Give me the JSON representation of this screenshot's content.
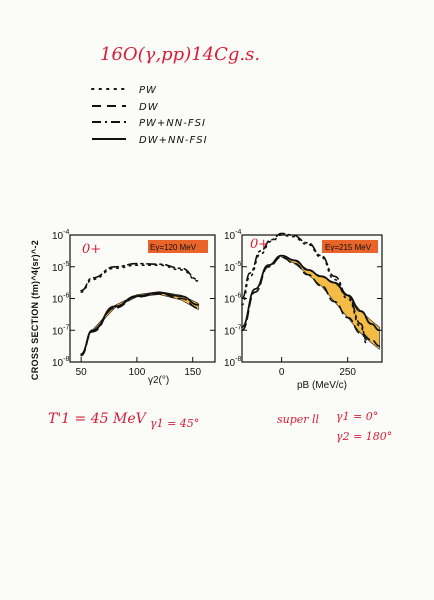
{
  "header": {
    "reaction": "16O(γ,pp)14Cg.s."
  },
  "legend": {
    "items": [
      {
        "label": "PW",
        "style": "dotted"
      },
      {
        "label": "DW",
        "style": "dashed"
      },
      {
        "label": "PW+NN-FSI",
        "style": "dashdot"
      },
      {
        "label": "DW+NN-FSI",
        "style": "solid"
      }
    ]
  },
  "notes": {
    "left": [
      "T'1 = 45 MeV",
      "γ1 = 45°"
    ],
    "right": [
      "super ll",
      "γ1 = 0°",
      "γ2 = 180°"
    ]
  },
  "colors": {
    "ink": "#111111",
    "pen": "#d4203a",
    "band": "#f0b028",
    "tag": "#e8642a"
  },
  "chart_data": [
    {
      "type": "line",
      "panel_label": "0+",
      "energy_label": "Eγ=120 MeV",
      "ylabel": "CROSS SECTION (fm)^4(sr)^-2",
      "xlabel": "γ2(°)",
      "xlim": [
        40,
        170
      ],
      "ylim_log10": [
        -8,
        -4
      ],
      "x_ticks": [
        "50",
        "100",
        "150"
      ],
      "y_ticks": [
        "10^-8",
        "10^-7",
        "10^-6",
        "10^-5",
        "10^-4"
      ],
      "y_minor_ticks": [
        -3,
        -2,
        -1,
        0
      ],
      "series": [
        {
          "label": "PW",
          "style": "dotted",
          "x": [
            50,
            60,
            80,
            100,
            120,
            140,
            155
          ],
          "log10_y": [
            -5.8,
            -5.4,
            -5.05,
            -4.95,
            -4.95,
            -5.1,
            -5.45
          ]
        },
        {
          "label": "PW+NN-FSI",
          "style": "dashdot",
          "x": [
            50,
            60,
            80,
            100,
            120,
            140,
            155
          ],
          "log10_y": [
            -5.75,
            -5.35,
            -5.0,
            -4.9,
            -4.92,
            -5.05,
            -5.4
          ]
        },
        {
          "label": "DW",
          "style": "dashed",
          "x": [
            50,
            60,
            80,
            100,
            120,
            140,
            155
          ],
          "log10_y": [
            -7.8,
            -7.05,
            -6.3,
            -5.95,
            -5.85,
            -6.0,
            -6.3
          ]
        },
        {
          "label": "DW+NN-FSI",
          "style": "solid",
          "x": [
            50,
            60,
            80,
            100,
            120,
            140,
            155
          ],
          "log10_y": [
            -7.75,
            -7.0,
            -6.25,
            -5.92,
            -5.82,
            -5.93,
            -6.2
          ]
        }
      ],
      "band": {
        "x": [
          60,
          80,
          100,
          120,
          140,
          155
        ],
        "log10_low": [
          -7.05,
          -6.3,
          -5.95,
          -5.87,
          -6.05,
          -6.35
        ],
        "log10_high": [
          -7.0,
          -6.22,
          -5.88,
          -5.78,
          -5.9,
          -6.15
        ]
      }
    },
    {
      "type": "line",
      "panel_label": "0+",
      "energy_label": "Eγ=215 MeV",
      "xlabel": "pB (MeV/c)",
      "xlim": [
        -150,
        380
      ],
      "ylim_log10": [
        -8,
        -4
      ],
      "x_ticks": [
        "0",
        "250"
      ],
      "y_ticks": [
        "10^-8",
        "10^-7",
        "10^-6",
        "10^-5",
        "10^-4"
      ],
      "y_minor_ticks": [
        -3,
        -2,
        -1,
        0
      ],
      "series": [
        {
          "label": "PW",
          "style": "dotted",
          "x": [
            -150,
            -120,
            -80,
            -40,
            0,
            40,
            100,
            150,
            200,
            250,
            300,
            320
          ],
          "log10_y": [
            -6.2,
            -5.3,
            -4.6,
            -4.2,
            -4.0,
            -4.05,
            -4.3,
            -4.7,
            -5.4,
            -6.0,
            -6.9,
            -7.4
          ]
        },
        {
          "label": "PW+NN-FSI",
          "style": "dashdot",
          "x": [
            -150,
            -120,
            -80,
            -40,
            0,
            40,
            100,
            150,
            200,
            250,
            300,
            320
          ],
          "log10_y": [
            -6.0,
            -5.2,
            -4.5,
            -4.15,
            -3.95,
            -4.0,
            -4.25,
            -4.65,
            -5.3,
            -5.9,
            -6.8,
            -7.3
          ]
        },
        {
          "label": "DW",
          "style": "dashed",
          "x": [
            -150,
            -100,
            -50,
            0,
            50,
            100,
            150,
            200,
            250,
            300,
            340,
            370
          ],
          "log10_y": [
            -7.0,
            -5.8,
            -5.0,
            -4.7,
            -4.9,
            -5.25,
            -5.6,
            -6.1,
            -6.6,
            -7.1,
            -7.3,
            -7.5
          ]
        },
        {
          "label": "DW+NN-FSI",
          "style": "solid",
          "x": [
            -150,
            -100,
            -50,
            0,
            50,
            100,
            150,
            200,
            250,
            300,
            340,
            370
          ],
          "log10_y": [
            -6.9,
            -5.7,
            -4.95,
            -4.65,
            -4.8,
            -5.1,
            -5.3,
            -5.5,
            -5.9,
            -6.4,
            -6.8,
            -7.0
          ]
        }
      ],
      "band": {
        "x": [
          0,
          50,
          100,
          150,
          200,
          250,
          300,
          340,
          370
        ],
        "log10_low": [
          -4.7,
          -4.9,
          -5.25,
          -5.6,
          -6.1,
          -6.6,
          -7.1,
          -7.4,
          -7.6
        ],
        "log10_high": [
          -4.65,
          -4.8,
          -5.1,
          -5.3,
          -5.5,
          -5.9,
          -6.4,
          -6.7,
          -6.9
        ]
      }
    }
  ]
}
